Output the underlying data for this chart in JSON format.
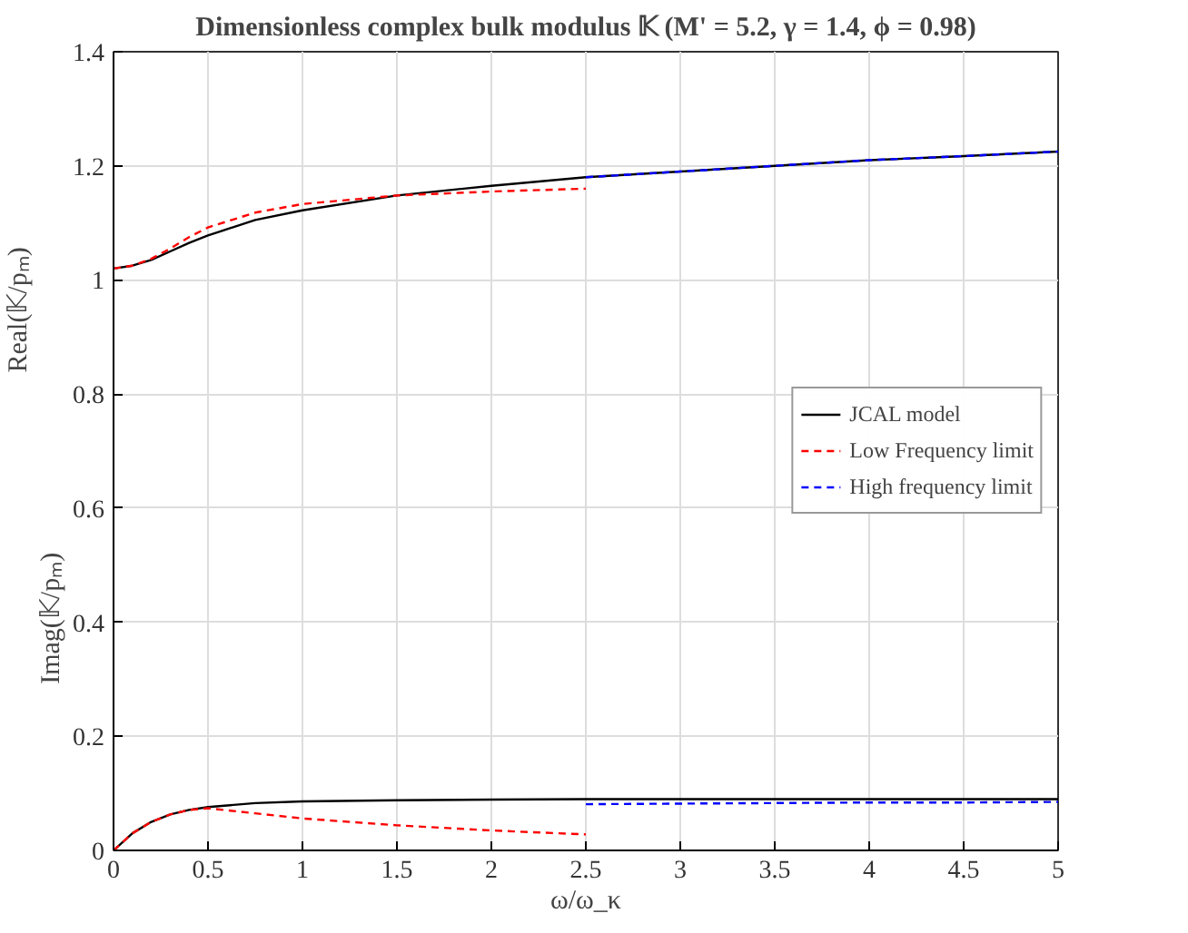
{
  "chart_data": {
    "type": "line",
    "title": "Dimensionless complex bulk modulus 𝕂 (M' = 5.2, γ = 1.4, ϕ = 0.98)",
    "xlabel": "ω/ω_κ",
    "ylabel": "Real(𝕂/pₘ)",
    "annotations": [
      "Imag(𝕂/pₘ)"
    ],
    "xlim": [
      0,
      5
    ],
    "xticks": [
      0,
      0.5,
      1,
      1.5,
      2,
      2.5,
      3,
      3.5,
      4,
      4.5,
      5
    ],
    "ylim": [
      0,
      1.4
    ],
    "yticks": [
      0,
      0.2,
      0.4,
      0.6,
      0.8,
      1,
      1.2,
      1.4
    ],
    "grid": true,
    "legend": "right",
    "marker": "none",
    "series": [
      {
        "name": "JCAL model",
        "color": "#000000",
        "line_style": "solid",
        "x": [
          0,
          0.1,
          0.2,
          0.3,
          0.4,
          0.5,
          0.75,
          1,
          1.5,
          2,
          2.5,
          3,
          3.5,
          4,
          4.5,
          5
        ],
        "values": [
          1.02,
          1.025,
          1.035,
          1.05,
          1.065,
          1.078,
          1.105,
          1.122,
          1.148,
          1.165,
          1.18,
          1.19,
          1.2,
          1.21,
          1.217,
          1.225
        ]
      },
      {
        "name": "Low Frequency limit",
        "color": "#ff0000",
        "line_style": "dashed",
        "x": [
          0,
          0.1,
          0.2,
          0.3,
          0.4,
          0.5,
          0.75,
          1,
          1.5,
          2,
          2.5
        ],
        "values": [
          1.02,
          1.025,
          1.037,
          1.055,
          1.075,
          1.092,
          1.118,
          1.133,
          1.148,
          1.155,
          1.16
        ]
      },
      {
        "name": "High frequency limit",
        "color": "#0000ff",
        "line_style": "dashed",
        "x": [
          2.5,
          3,
          3.5,
          4,
          4.5,
          5
        ],
        "values": [
          1.18,
          1.19,
          1.2,
          1.21,
          1.217,
          1.225
        ]
      },
      {
        "color": "#000000",
        "line_style": "solid",
        "x": [
          0,
          0.1,
          0.2,
          0.3,
          0.4,
          0.5,
          0.75,
          1,
          1.5,
          2,
          2.5,
          3,
          3.5,
          4,
          4.5,
          5
        ],
        "values": [
          0,
          0.03,
          0.05,
          0.063,
          0.071,
          0.076,
          0.083,
          0.086,
          0.088,
          0.089,
          0.09,
          0.09,
          0.09,
          0.09,
          0.09,
          0.09
        ]
      },
      {
        "color": "#ff0000",
        "line_style": "dashed",
        "x": [
          0,
          0.1,
          0.2,
          0.3,
          0.4,
          0.5,
          0.75,
          1,
          1.5,
          2,
          2.5
        ],
        "values": [
          0,
          0.03,
          0.05,
          0.063,
          0.071,
          0.074,
          0.065,
          0.056,
          0.044,
          0.035,
          0.028
        ]
      },
      {
        "color": "#0000ff",
        "line_style": "dashed",
        "x": [
          2.5,
          3,
          3.5,
          4,
          4.5,
          5
        ],
        "values": [
          0.081,
          0.082,
          0.083,
          0.084,
          0.084,
          0.085
        ]
      }
    ]
  }
}
